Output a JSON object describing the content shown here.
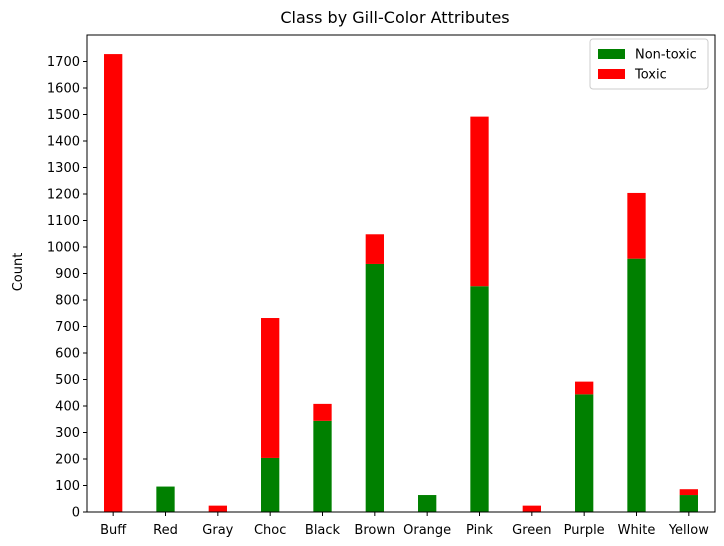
{
  "chart_data": {
    "type": "bar",
    "stacked": true,
    "title": "Class by Gill-Color Attributes",
    "xlabel": "",
    "ylabel": "Count",
    "categories": [
      "Buff",
      "Red",
      "Gray",
      "Choc",
      "Black",
      "Brown",
      "Orange",
      "Pink",
      "Green",
      "Purple",
      "White",
      "Yellow"
    ],
    "series": [
      {
        "name": "Non-toxic",
        "color": "#008000",
        "values": [
          0,
          96,
          0,
          204,
          344,
          936,
          64,
          852,
          0,
          444,
          956,
          64
        ]
      },
      {
        "name": "Toxic",
        "color": "#ff0000",
        "values": [
          1728,
          0,
          24,
          528,
          64,
          112,
          0,
          640,
          24,
          48,
          248,
          22
        ]
      }
    ],
    "ylim": [
      0,
      1800
    ],
    "yticks": [
      0,
      100,
      200,
      300,
      400,
      500,
      600,
      700,
      800,
      900,
      1000,
      1100,
      1200,
      1300,
      1400,
      1500,
      1600,
      1700
    ],
    "grid": false,
    "legend": "top-right"
  }
}
